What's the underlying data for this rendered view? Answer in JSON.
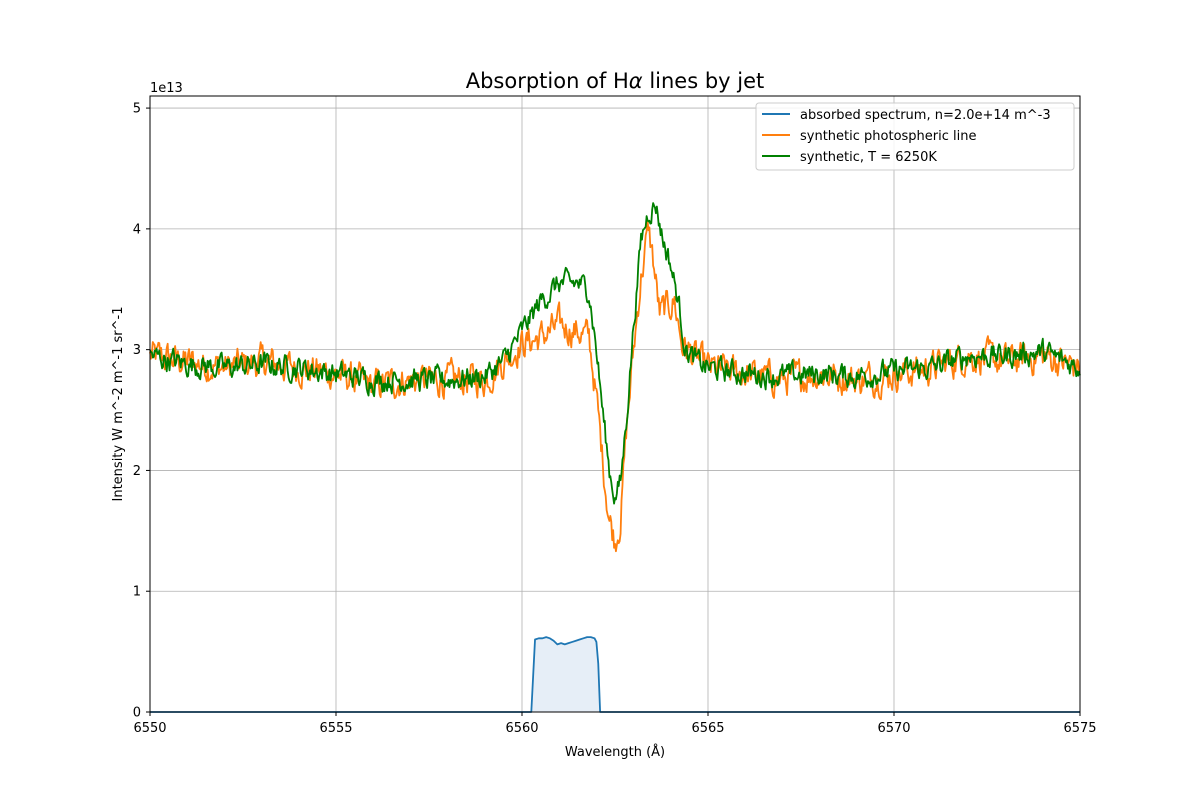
{
  "chart_data": {
    "type": "line",
    "title_prefix": "Absorption of H",
    "title_symbol": "α",
    "title_suffix": " lines by jet",
    "xlabel": "Wavelength (Å)",
    "ylabel": "Intensity W m^-2 m^-1 sr^-1",
    "y_offset_label": "1e13",
    "xlim": [
      6550,
      6575
    ],
    "ylim": [
      0,
      5.1
    ],
    "y_scale_factor": 10000000000000.0,
    "xticks": [
      6550,
      6555,
      6560,
      6565,
      6570,
      6575
    ],
    "xtick_labels": [
      "6550",
      "6555",
      "6560",
      "6565",
      "6570",
      "6575"
    ],
    "yticks": [
      0,
      1,
      2,
      3,
      4,
      5
    ],
    "ytick_labels": [
      "0",
      "1",
      "2",
      "3",
      "4",
      "5"
    ],
    "grid": true,
    "legend_position": "top-right",
    "series": [
      {
        "name": "absorbed spectrum, n=2.0e+14 m^-3",
        "color": "#1f77b4",
        "fill": "#e6eef7",
        "x": [
          6550,
          6560.25,
          6560.3,
          6560.35,
          6560.45,
          6560.55,
          6560.65,
          6560.75,
          6560.85,
          6560.95,
          6561.05,
          6561.15,
          6561.25,
          6561.35,
          6561.45,
          6561.55,
          6561.65,
          6561.75,
          6561.85,
          6561.95,
          6562.0,
          6562.05,
          6562.1,
          6575
        ],
        "y": [
          0,
          0,
          0.3,
          0.6,
          0.61,
          0.61,
          0.62,
          0.61,
          0.59,
          0.56,
          0.57,
          0.56,
          0.57,
          0.58,
          0.59,
          0.6,
          0.61,
          0.62,
          0.62,
          0.61,
          0.58,
          0.4,
          0,
          0
        ]
      },
      {
        "name": "synthetic photospheric line",
        "color": "#ff7f0e",
        "anchors_x": [
          6550,
          6551,
          6552,
          6553,
          6554,
          6555,
          6556,
          6557,
          6558,
          6559,
          6559.5,
          6560,
          6560.5,
          6561,
          6561.5,
          6561.8,
          6562.0,
          6562.2,
          6562.35,
          6562.5,
          6562.65,
          6562.8,
          6563.0,
          6563.2,
          6563.4,
          6563.5,
          6563.7,
          6563.9,
          6564.1,
          6564.3,
          6564.6,
          6565,
          6566,
          6567,
          6568,
          6569,
          6570,
          6571,
          6572,
          6573,
          6574,
          6575
        ],
        "anchors_y": [
          2.95,
          2.9,
          2.85,
          2.9,
          2.85,
          2.8,
          2.7,
          2.75,
          2.75,
          2.75,
          2.9,
          3.05,
          3.1,
          3.2,
          3.15,
          3.1,
          2.6,
          2.0,
          1.6,
          1.42,
          1.6,
          2.3,
          3.0,
          3.6,
          4.0,
          3.8,
          3.3,
          3.35,
          3.4,
          3.05,
          2.95,
          2.85,
          2.8,
          2.75,
          2.8,
          2.75,
          2.8,
          2.85,
          2.95,
          2.9,
          2.95,
          2.85
        ],
        "noise": 0.11
      },
      {
        "name": "synthetic, T = 6250K",
        "color": "#008000",
        "anchors_x": [
          6550,
          6551,
          6552,
          6553,
          6554,
          6555,
          6556,
          6557,
          6558,
          6559,
          6559.5,
          6560,
          6560.5,
          6561,
          6561.5,
          6561.8,
          6562.0,
          6562.2,
          6562.35,
          6562.5,
          6562.65,
          6562.8,
          6563.0,
          6563.2,
          6563.4,
          6563.6,
          6563.8,
          6564.0,
          6564.2,
          6564.4,
          6564.7,
          6565,
          6566,
          6567,
          6568,
          6569,
          6570,
          6571,
          6572,
          6573,
          6574,
          6575
        ],
        "anchors_y": [
          2.95,
          2.88,
          2.85,
          2.88,
          2.85,
          2.8,
          2.75,
          2.75,
          2.75,
          2.78,
          2.9,
          3.15,
          3.4,
          3.55,
          3.55,
          3.5,
          3.0,
          2.4,
          2.0,
          1.78,
          1.9,
          2.4,
          3.2,
          3.9,
          4.15,
          4.2,
          3.9,
          3.7,
          3.4,
          3.0,
          2.9,
          2.85,
          2.8,
          2.78,
          2.8,
          2.78,
          2.82,
          2.85,
          2.95,
          2.95,
          2.98,
          2.85
        ],
        "noise": 0.08
      }
    ]
  }
}
